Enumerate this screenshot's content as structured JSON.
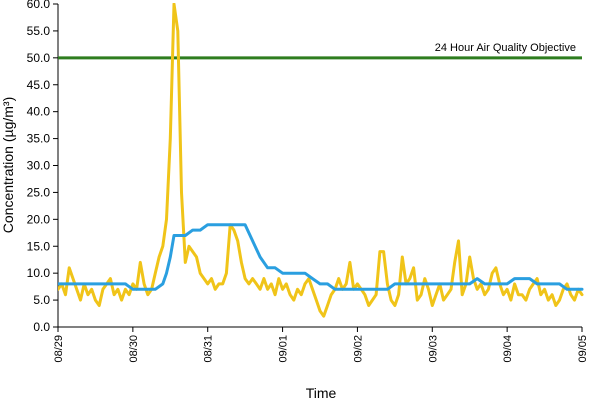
{
  "chart_data": {
    "type": "line",
    "xlabel": "Time",
    "ylabel": "Concentration (µg/m³)",
    "ylim": [
      0,
      60
    ],
    "yticks": [
      0.0,
      5.0,
      10.0,
      15.0,
      20.0,
      25.0,
      30.0,
      35.0,
      40.0,
      45.0,
      50.0,
      55.0,
      60.0
    ],
    "ytick_labels": [
      "0.0",
      "5.0",
      "10.0",
      "15.0",
      "20.0",
      "25.0",
      "30.0",
      "35.0",
      "40.0",
      "45.0",
      "50.0",
      "55.0",
      "60.0"
    ],
    "xtick_labels": [
      "08/29",
      "08/30",
      "08/31",
      "09/01",
      "09/02",
      "09/03",
      "09/04",
      "09/05"
    ],
    "grid": false,
    "reference_line": {
      "label": "24 Hour Air Quality Objective",
      "value": 50.0,
      "color": "#2e7d1f"
    },
    "series": [
      {
        "color": "#f0c419",
        "x": [
          0.0,
          0.05,
          0.1,
          0.15,
          0.2,
          0.25,
          0.3,
          0.35,
          0.4,
          0.45,
          0.5,
          0.55,
          0.6,
          0.65,
          0.7,
          0.75,
          0.8,
          0.85,
          0.9,
          0.95,
          1.0,
          1.05,
          1.1,
          1.15,
          1.2,
          1.25,
          1.3,
          1.35,
          1.4,
          1.45,
          1.5,
          1.55,
          1.6,
          1.65,
          1.7,
          1.75,
          1.8,
          1.85,
          1.9,
          1.95,
          2.0,
          2.05,
          2.1,
          2.15,
          2.2,
          2.25,
          2.3,
          2.35,
          2.4,
          2.45,
          2.5,
          2.55,
          2.6,
          2.65,
          2.7,
          2.75,
          2.8,
          2.85,
          2.9,
          2.95,
          3.0,
          3.05,
          3.1,
          3.15,
          3.2,
          3.25,
          3.3,
          3.35,
          3.4,
          3.45,
          3.5,
          3.55,
          3.6,
          3.65,
          3.7,
          3.75,
          3.8,
          3.85,
          3.9,
          3.95,
          4.0,
          4.05,
          4.1,
          4.15,
          4.2,
          4.25,
          4.3,
          4.35,
          4.4,
          4.45,
          4.5,
          4.55,
          4.6,
          4.65,
          4.7,
          4.75,
          4.8,
          4.85,
          4.9,
          4.95,
          5.0,
          5.05,
          5.1,
          5.15,
          5.2,
          5.25,
          5.3,
          5.35,
          5.4,
          5.45,
          5.5,
          5.55,
          5.6,
          5.65,
          5.7,
          5.75,
          5.8,
          5.85,
          5.9,
          5.95,
          6.0,
          6.05,
          6.1,
          6.15,
          6.2,
          6.25,
          6.3,
          6.35,
          6.4,
          6.45,
          6.5,
          6.55,
          6.6,
          6.65,
          6.7,
          6.75,
          6.8,
          6.85,
          6.9,
          6.95,
          7.0
        ],
        "values": [
          7,
          8,
          6,
          11,
          9,
          7,
          5,
          8,
          6,
          7,
          5,
          4,
          7,
          8,
          9,
          6,
          7,
          5,
          7,
          6,
          8,
          7,
          12,
          8,
          6,
          7,
          10,
          13,
          15,
          20,
          35,
          60,
          55,
          25,
          12,
          15,
          14,
          13,
          10,
          9,
          8,
          9,
          7,
          8,
          8,
          10,
          19,
          18,
          16,
          12,
          9,
          8,
          9,
          8,
          7,
          9,
          7,
          8,
          6,
          9,
          7,
          8,
          6,
          5,
          7,
          6,
          8,
          9,
          7,
          5,
          3,
          2,
          4,
          6,
          7,
          9,
          7,
          8,
          12,
          7,
          8,
          7,
          6,
          4,
          5,
          6,
          14,
          14,
          8,
          5,
          4,
          6,
          13,
          8,
          9,
          11,
          5,
          6,
          9,
          7,
          4,
          6,
          8,
          5,
          6,
          7,
          12,
          16,
          6,
          8,
          13,
          9,
          7,
          8,
          6,
          7,
          10,
          11,
          8,
          6,
          7,
          5,
          8,
          6,
          6,
          5,
          7,
          8,
          9,
          6,
          7,
          5,
          6,
          4,
          5,
          7,
          8,
          6,
          5,
          7,
          6
        ]
      },
      {
        "color": "#2a9fe0",
        "x": [
          0.0,
          0.1,
          0.2,
          0.3,
          0.4,
          0.5,
          0.6,
          0.7,
          0.8,
          0.9,
          1.0,
          1.1,
          1.2,
          1.3,
          1.4,
          1.45,
          1.5,
          1.55,
          1.6,
          1.7,
          1.8,
          1.9,
          2.0,
          2.1,
          2.2,
          2.3,
          2.4,
          2.5,
          2.6,
          2.7,
          2.8,
          2.9,
          3.0,
          3.1,
          3.2,
          3.3,
          3.4,
          3.5,
          3.6,
          3.7,
          3.8,
          3.9,
          4.0,
          4.1,
          4.2,
          4.3,
          4.4,
          4.5,
          4.6,
          4.7,
          4.8,
          4.9,
          5.0,
          5.1,
          5.2,
          5.3,
          5.4,
          5.5,
          5.6,
          5.7,
          5.8,
          5.9,
          6.0,
          6.1,
          6.2,
          6.3,
          6.4,
          6.5,
          6.6,
          6.7,
          6.8,
          6.9,
          7.0
        ],
        "values": [
          8,
          8,
          8,
          8,
          8,
          8,
          8,
          8,
          8,
          8,
          7,
          7,
          7,
          7,
          8,
          10,
          13,
          17,
          17,
          17,
          18,
          18,
          19,
          19,
          19,
          19,
          19,
          19,
          16,
          13,
          11,
          11,
          10,
          10,
          10,
          10,
          9,
          8,
          8,
          7,
          7,
          7,
          7,
          7,
          7,
          7,
          7,
          8,
          8,
          8,
          8,
          8,
          8,
          8,
          8,
          8,
          8,
          8,
          9,
          8,
          8,
          8,
          8,
          9,
          9,
          9,
          8,
          8,
          8,
          8,
          7,
          7,
          7
        ]
      }
    ]
  }
}
